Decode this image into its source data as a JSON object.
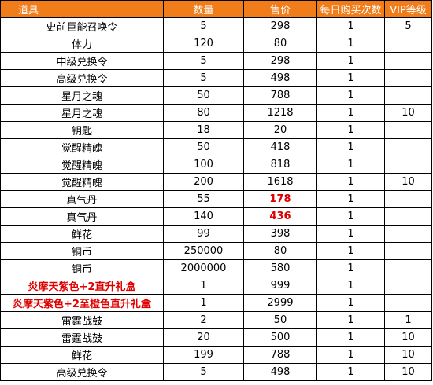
{
  "header": {
    "item": "道具",
    "quantity": "数量",
    "price": "售价",
    "daily_limit": "每日购买次数",
    "vip_level": "VIP等级"
  },
  "highlight_color": "#e00000",
  "header_bg": "#f07d1a",
  "rows": [
    {
      "item": "史前巨能召唤令",
      "quantity": "5",
      "price": "298",
      "daily": "1",
      "vip": "5"
    },
    {
      "item": "体力",
      "quantity": "120",
      "price": "80",
      "daily": "1",
      "vip": ""
    },
    {
      "item": "中级兑换令",
      "quantity": "5",
      "price": "298",
      "daily": "1",
      "vip": ""
    },
    {
      "item": "高级兑换令",
      "quantity": "5",
      "price": "498",
      "daily": "1",
      "vip": ""
    },
    {
      "item": "星月之魂",
      "quantity": "50",
      "price": "788",
      "daily": "1",
      "vip": ""
    },
    {
      "item": "星月之魂",
      "quantity": "80",
      "price": "1218",
      "daily": "1",
      "vip": "10"
    },
    {
      "item": "钥匙",
      "quantity": "18",
      "price": "20",
      "daily": "1",
      "vip": ""
    },
    {
      "item": "觉醒精魄",
      "quantity": "50",
      "price": "418",
      "daily": "1",
      "vip": ""
    },
    {
      "item": "觉醒精魄",
      "quantity": "100",
      "price": "818",
      "daily": "1",
      "vip": ""
    },
    {
      "item": "觉醒精魄",
      "quantity": "200",
      "price": "1618",
      "daily": "1",
      "vip": "10"
    },
    {
      "item": "真气丹",
      "quantity": "55",
      "price": "178",
      "daily": "1",
      "vip": "",
      "price_red": true
    },
    {
      "item": "真气丹",
      "quantity": "140",
      "price": "436",
      "daily": "1",
      "vip": "",
      "price_red": true
    },
    {
      "item": "鲜花",
      "quantity": "99",
      "price": "398",
      "daily": "1",
      "vip": ""
    },
    {
      "item": "铜币",
      "quantity": "250000",
      "price": "80",
      "daily": "1",
      "vip": ""
    },
    {
      "item": "铜币",
      "quantity": "2000000",
      "price": "580",
      "daily": "1",
      "vip": ""
    },
    {
      "item": "炎摩天紫色+2直升礼盒",
      "quantity": "1",
      "price": "999",
      "daily": "1",
      "vip": "",
      "item_red": true
    },
    {
      "item": "炎摩天紫色+2至橙色直升礼盒",
      "quantity": "1",
      "price": "2999",
      "daily": "1",
      "vip": "",
      "item_red": true
    },
    {
      "item": "雷霆战鼓",
      "quantity": "2",
      "price": "50",
      "daily": "1",
      "vip": "1"
    },
    {
      "item": "雷霆战鼓",
      "quantity": "20",
      "price": "500",
      "daily": "1",
      "vip": "10"
    },
    {
      "item": "鲜花",
      "quantity": "199",
      "price": "788",
      "daily": "1",
      "vip": "10"
    },
    {
      "item": "高级兑换令",
      "quantity": "5",
      "price": "498",
      "daily": "1",
      "vip": "10"
    }
  ]
}
